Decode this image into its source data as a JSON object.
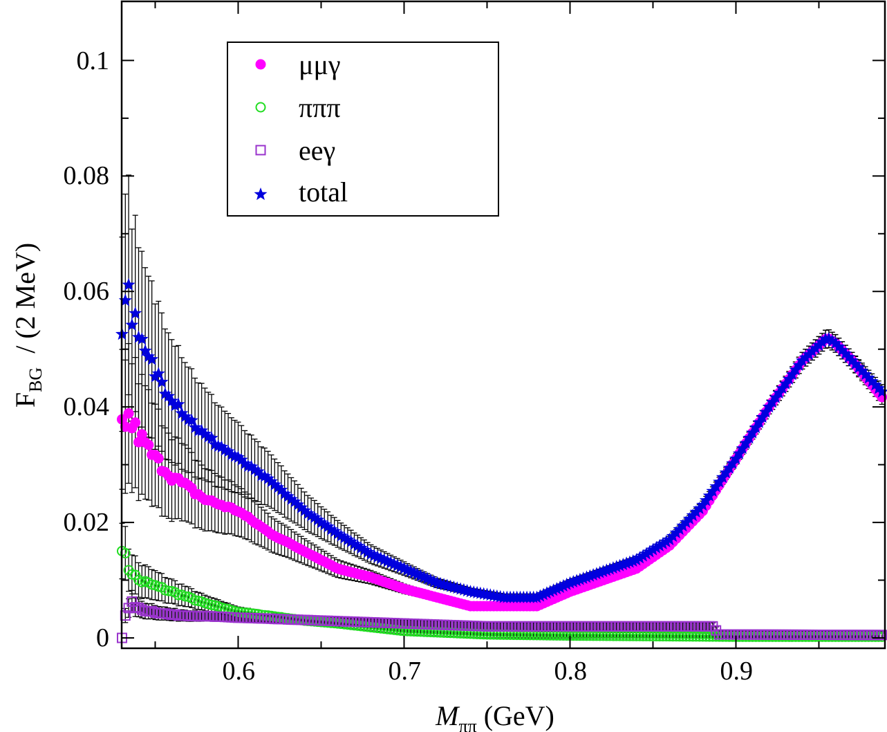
{
  "chart_data": {
    "type": "scatter",
    "title": "",
    "xlabel": "M",
    "xlabel_sub": "ππ",
    "xlabel_unit": " (GeV)",
    "ylabel": "F",
    "ylabel_sub": "BG",
    "ylabel_unit": "  / (2 MeV)",
    "xlim": [
      0.53,
      0.99
    ],
    "ylim": [
      -0.002,
      0.11
    ],
    "x_ticks": [
      0.6,
      0.7,
      0.8,
      0.9
    ],
    "x_tick_labels": [
      "0.6",
      "0.7",
      "0.8",
      "0.9"
    ],
    "y_ticks": [
      0,
      0.02,
      0.04,
      0.06,
      0.08,
      0.1
    ],
    "y_tick_labels": [
      "0",
      "0.02",
      "0.04",
      "0.06",
      "0.08",
      "0.1"
    ],
    "legend_position": "top-left",
    "series": [
      {
        "name": "μμγ",
        "marker": "filled-circle",
        "color": "#ff00ff",
        "x_start": 0.53,
        "x_step": 0.002,
        "knots_x": [
          0.53,
          0.534,
          0.54,
          0.55,
          0.56,
          0.57,
          0.58,
          0.59,
          0.6,
          0.62,
          0.64,
          0.66,
          0.68,
          0.7,
          0.72,
          0.74,
          0.76,
          0.78,
          0.8,
          0.82,
          0.84,
          0.86,
          0.88,
          0.9,
          0.92,
          0.94,
          0.955,
          0.96,
          0.97,
          0.99
        ],
        "knots_y": [
          0.037,
          0.038,
          0.035,
          0.031,
          0.028,
          0.026,
          0.024,
          0.023,
          0.022,
          0.018,
          0.015,
          0.012,
          0.0105,
          0.0085,
          0.007,
          0.0055,
          0.0055,
          0.0055,
          0.008,
          0.01,
          0.012,
          0.016,
          0.022,
          0.031,
          0.04,
          0.048,
          0.052,
          0.051,
          0.048,
          0.041
        ]
      },
      {
        "name": "πππ",
        "marker": "open-circle",
        "color": "#22dd22",
        "x_start": 0.53,
        "x_step": 0.002,
        "knots_x": [
          0.53,
          0.534,
          0.54,
          0.55,
          0.56,
          0.58,
          0.6,
          0.62,
          0.64,
          0.66,
          0.7,
          0.75,
          0.8,
          0.85,
          0.9,
          0.99
        ],
        "knots_y": [
          0.016,
          0.012,
          0.01,
          0.009,
          0.008,
          0.006,
          0.0045,
          0.0038,
          0.003,
          0.0025,
          0.0012,
          0.0006,
          0.0004,
          0.0003,
          0.0002,
          0.0002
        ]
      },
      {
        "name": "eeγ",
        "marker": "open-square",
        "color": "#9933cc",
        "x_start": 0.53,
        "x_step": 0.002,
        "knots_x": [
          0.53,
          0.532,
          0.536,
          0.54,
          0.56,
          0.6,
          0.65,
          0.7,
          0.75,
          0.8,
          0.85,
          0.886,
          0.89,
          0.99
        ],
        "knots_y": [
          0.0,
          0.004,
          0.006,
          0.005,
          0.004,
          0.0035,
          0.003,
          0.0025,
          0.002,
          0.002,
          0.002,
          0.002,
          0.0006,
          0.0005
        ]
      },
      {
        "name": "total",
        "marker": "filled-star",
        "color": "#0000dd",
        "x_start": 0.53,
        "x_step": 0.002,
        "knots_x": [
          0.53,
          0.532,
          0.536,
          0.54,
          0.55,
          0.56,
          0.57,
          0.58,
          0.59,
          0.6,
          0.62,
          0.64,
          0.66,
          0.68,
          0.7,
          0.72,
          0.74,
          0.76,
          0.78,
          0.8,
          0.82,
          0.84,
          0.86,
          0.88,
          0.9,
          0.92,
          0.94,
          0.955,
          0.96,
          0.97,
          0.99
        ],
        "knots_y": [
          0.053,
          0.061,
          0.057,
          0.051,
          0.046,
          0.042,
          0.038,
          0.035,
          0.033,
          0.031,
          0.027,
          0.022,
          0.018,
          0.0145,
          0.012,
          0.0095,
          0.008,
          0.007,
          0.007,
          0.0095,
          0.0115,
          0.0135,
          0.017,
          0.023,
          0.031,
          0.04,
          0.048,
          0.052,
          0.051,
          0.048,
          0.042
        ]
      }
    ],
    "error_bars": {
      "applies_to": [
        "μμγ",
        "πππ",
        "eeγ",
        "total"
      ],
      "color": "#000000",
      "relative_error_at_start": 0.32,
      "relative_error_decay_per_GeV": 7.0,
      "relative_error_floor": 0.03
    }
  }
}
